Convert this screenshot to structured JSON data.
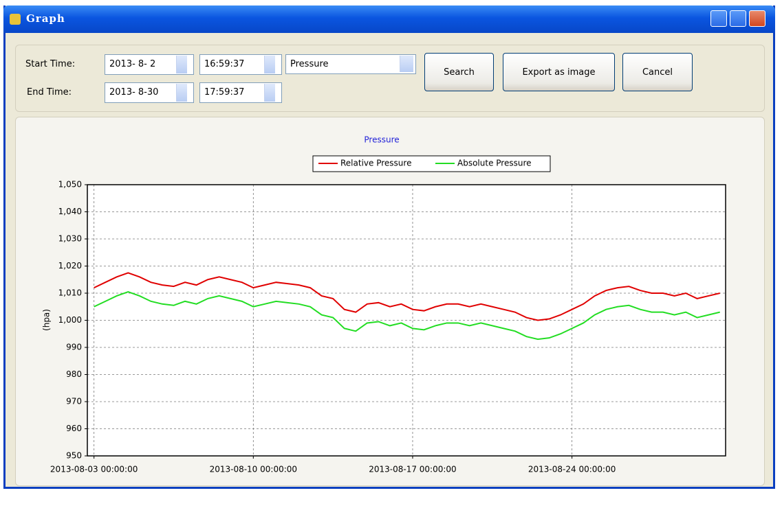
{
  "window": {
    "title": "Graph"
  },
  "form": {
    "start_label": "Start Time:",
    "start_date": "2013- 8- 2",
    "start_time": "16:59:37",
    "end_label": "End Time:",
    "end_date": "2013- 8-30",
    "end_time": "17:59:37",
    "dropdown": "Pressure",
    "buttons": [
      "Search",
      "Export as image",
      "Cancel"
    ]
  },
  "chart_data": {
    "type": "line",
    "title": "Pressure",
    "y_label": "(hpa)",
    "x": [
      "2013-08-03 00:00:00",
      "2013-08-03 12:00:00",
      "2013-08-04 00:00:00",
      "2013-08-04 12:00:00",
      "2013-08-05 00:00:00",
      "2013-08-05 12:00:00",
      "2013-08-06 00:00:00",
      "2013-08-06 12:00:00",
      "2013-08-07 00:00:00",
      "2013-08-07 12:00:00",
      "2013-08-08 00:00:00",
      "2013-08-08 12:00:00",
      "2013-08-09 00:00:00",
      "2013-08-09 12:00:00",
      "2013-08-10 00:00:00",
      "2013-08-10 12:00:00",
      "2013-08-11 00:00:00",
      "2013-08-11 12:00:00",
      "2013-08-12 00:00:00",
      "2013-08-12 12:00:00",
      "2013-08-13 00:00:00",
      "2013-08-13 12:00:00",
      "2013-08-14 00:00:00",
      "2013-08-14 12:00:00",
      "2013-08-15 00:00:00",
      "2013-08-15 12:00:00",
      "2013-08-16 00:00:00",
      "2013-08-16 12:00:00",
      "2013-08-17 00:00:00",
      "2013-08-17 12:00:00",
      "2013-08-18 00:00:00",
      "2013-08-18 12:00:00",
      "2013-08-19 00:00:00",
      "2013-08-19 12:00:00",
      "2013-08-20 00:00:00",
      "2013-08-20 12:00:00",
      "2013-08-21 00:00:00",
      "2013-08-21 12:00:00",
      "2013-08-22 00:00:00",
      "2013-08-22 12:00:00",
      "2013-08-23 00:00:00",
      "2013-08-23 12:00:00",
      "2013-08-24 00:00:00",
      "2013-08-24 12:00:00",
      "2013-08-25 00:00:00",
      "2013-08-25 12:00:00",
      "2013-08-26 00:00:00",
      "2013-08-26 12:00:00",
      "2013-08-27 00:00:00",
      "2013-08-27 12:00:00",
      "2013-08-28 00:00:00",
      "2013-08-28 12:00:00",
      "2013-08-29 00:00:00",
      "2013-08-29 12:00:00",
      "2013-08-30 00:00:00",
      "2013-08-30 12:00:00"
    ],
    "series": [
      {
        "name": "Relative Pressure",
        "color": "#e00000",
        "values": [
          1012,
          1014,
          1016,
          1017.5,
          1016,
          1014,
          1013,
          1012.5,
          1014,
          1013,
          1015,
          1016,
          1015,
          1014,
          1012,
          1013,
          1014,
          1013.5,
          1013,
          1012,
          1009,
          1008,
          1004,
          1003,
          1006,
          1006.5,
          1005,
          1006,
          1004,
          1003.5,
          1005,
          1006,
          1006,
          1005,
          1006,
          1005,
          1004,
          1003,
          1001,
          1000,
          1000.5,
          1002,
          1004,
          1006,
          1009,
          1011,
          1012,
          1012.5,
          1011,
          1010,
          1010,
          1009,
          1010,
          1008,
          1009,
          1010
        ]
      },
      {
        "name": "Absolute Pressure",
        "color": "#22dd22",
        "values": [
          1005,
          1007,
          1009,
          1010.5,
          1009,
          1007,
          1006,
          1005.5,
          1007,
          1006,
          1008,
          1009,
          1008,
          1007,
          1005,
          1006,
          1007,
          1006.5,
          1006,
          1005,
          1002,
          1001,
          997,
          996,
          999,
          999.5,
          998,
          999,
          997,
          996.5,
          998,
          999,
          999,
          998,
          999,
          998,
          997,
          996,
          994,
          993,
          993.5,
          995,
          997,
          999,
          1002,
          1004,
          1005,
          1005.5,
          1004,
          1003,
          1003,
          1002,
          1003,
          1001,
          1002,
          1003
        ]
      }
    ],
    "xlim": [
      "2013-08-02 16:59:37",
      "2013-08-30 17:59:37"
    ],
    "xticks": [
      "2013-08-03 00:00:00",
      "2013-08-10 00:00:00",
      "2013-08-17 00:00:00",
      "2013-08-24 00:00:00"
    ],
    "ylim": [
      950,
      1050
    ],
    "yticks": [
      950,
      960,
      970,
      980,
      990,
      {
        "value": 1000,
        "label": "1,000"
      },
      {
        "value": 1010,
        "label": "1,010"
      },
      {
        "value": 1020,
        "label": "1,020"
      },
      {
        "value": 1030,
        "label": "1,030"
      },
      {
        "value": 1040,
        "label": "1,040"
      },
      {
        "value": 1050,
        "label": "1,050"
      }
    ],
    "grid": true,
    "legend": "top"
  }
}
